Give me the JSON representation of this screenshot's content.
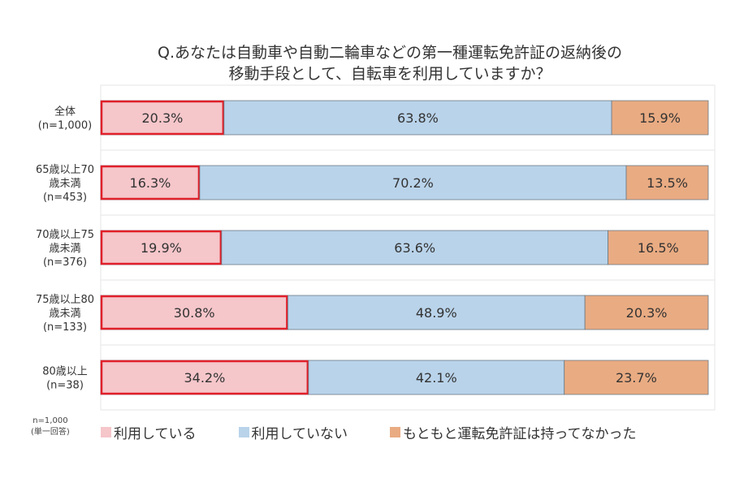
{
  "chart_data": {
    "type": "bar",
    "orientation": "horizontal",
    "stacked": true,
    "title": [
      "Q.あなたは自動車や自動二輪車などの第一種運転免許証の返納後の",
      "移動手段として、自転車を利用していますか？"
    ],
    "categories": [
      [
        "全体",
        "(n=1,000)"
      ],
      [
        "65歳以上70",
        "歳未満",
        "(n=453)"
      ],
      [
        "70歳以上75",
        "歳未満",
        "(n=376)"
      ],
      [
        "75歳以上80",
        "歳未満",
        "(n=133)"
      ],
      [
        "80歳以上",
        "(n=38)"
      ]
    ],
    "series": [
      {
        "name": "利用している",
        "values": [
          20.3,
          16.3,
          19.9,
          30.8,
          34.2
        ],
        "color": "#f5c6ca",
        "highlight_border": "#e0202a"
      },
      {
        "name": "利用していない",
        "values": [
          63.8,
          70.2,
          63.6,
          48.9,
          42.1
        ],
        "color": "#b9d3ea"
      },
      {
        "name": "もともと運転免許証は持ってなかった",
        "values": [
          15.9,
          13.5,
          16.5,
          20.3,
          23.7
        ],
        "color": "#e9ab82"
      }
    ],
    "value_suffix": "%",
    "xlim": [
      0,
      100
    ],
    "grid": false,
    "legend_position": "bottom",
    "note": [
      "n=1,000",
      "(単一回答)"
    ]
  }
}
